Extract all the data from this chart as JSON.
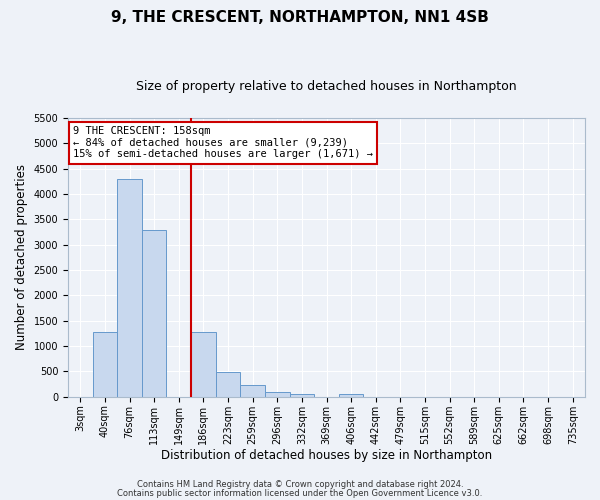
{
  "title": "9, THE CRESCENT, NORTHAMPTON, NN1 4SB",
  "subtitle": "Size of property relative to detached houses in Northampton",
  "xlabel": "Distribution of detached houses by size in Northampton",
  "ylabel": "Number of detached properties",
  "bar_labels": [
    "3sqm",
    "40sqm",
    "76sqm",
    "113sqm",
    "149sqm",
    "186sqm",
    "223sqm",
    "259sqm",
    "296sqm",
    "332sqm",
    "369sqm",
    "406sqm",
    "442sqm",
    "479sqm",
    "515sqm",
    "552sqm",
    "589sqm",
    "625sqm",
    "662sqm",
    "698sqm",
    "735sqm"
  ],
  "bar_values": [
    0,
    1270,
    4300,
    3280,
    0,
    1280,
    480,
    230,
    90,
    60,
    0,
    50,
    0,
    0,
    0,
    0,
    0,
    0,
    0,
    0,
    0
  ],
  "bar_color": "#c8d8ee",
  "bar_edge_color": "#6699cc",
  "vline_color": "#cc0000",
  "ylim": [
    0,
    5500
  ],
  "yticks": [
    0,
    500,
    1000,
    1500,
    2000,
    2500,
    3000,
    3500,
    4000,
    4500,
    5000,
    5500
  ],
  "annotation_title": "9 THE CRESCENT: 158sqm",
  "annotation_line1": "← 84% of detached houses are smaller (9,239)",
  "annotation_line2": "15% of semi-detached houses are larger (1,671) →",
  "annotation_box_color": "#ffffff",
  "annotation_box_edge": "#cc0000",
  "footer1": "Contains HM Land Registry data © Crown copyright and database right 2024.",
  "footer2": "Contains public sector information licensed under the Open Government Licence v3.0.",
  "bg_color": "#eef2f8",
  "grid_color": "#ffffff",
  "title_fontsize": 11,
  "subtitle_fontsize": 9,
  "tick_fontsize": 7,
  "axis_label_fontsize": 8.5,
  "footer_fontsize": 6
}
